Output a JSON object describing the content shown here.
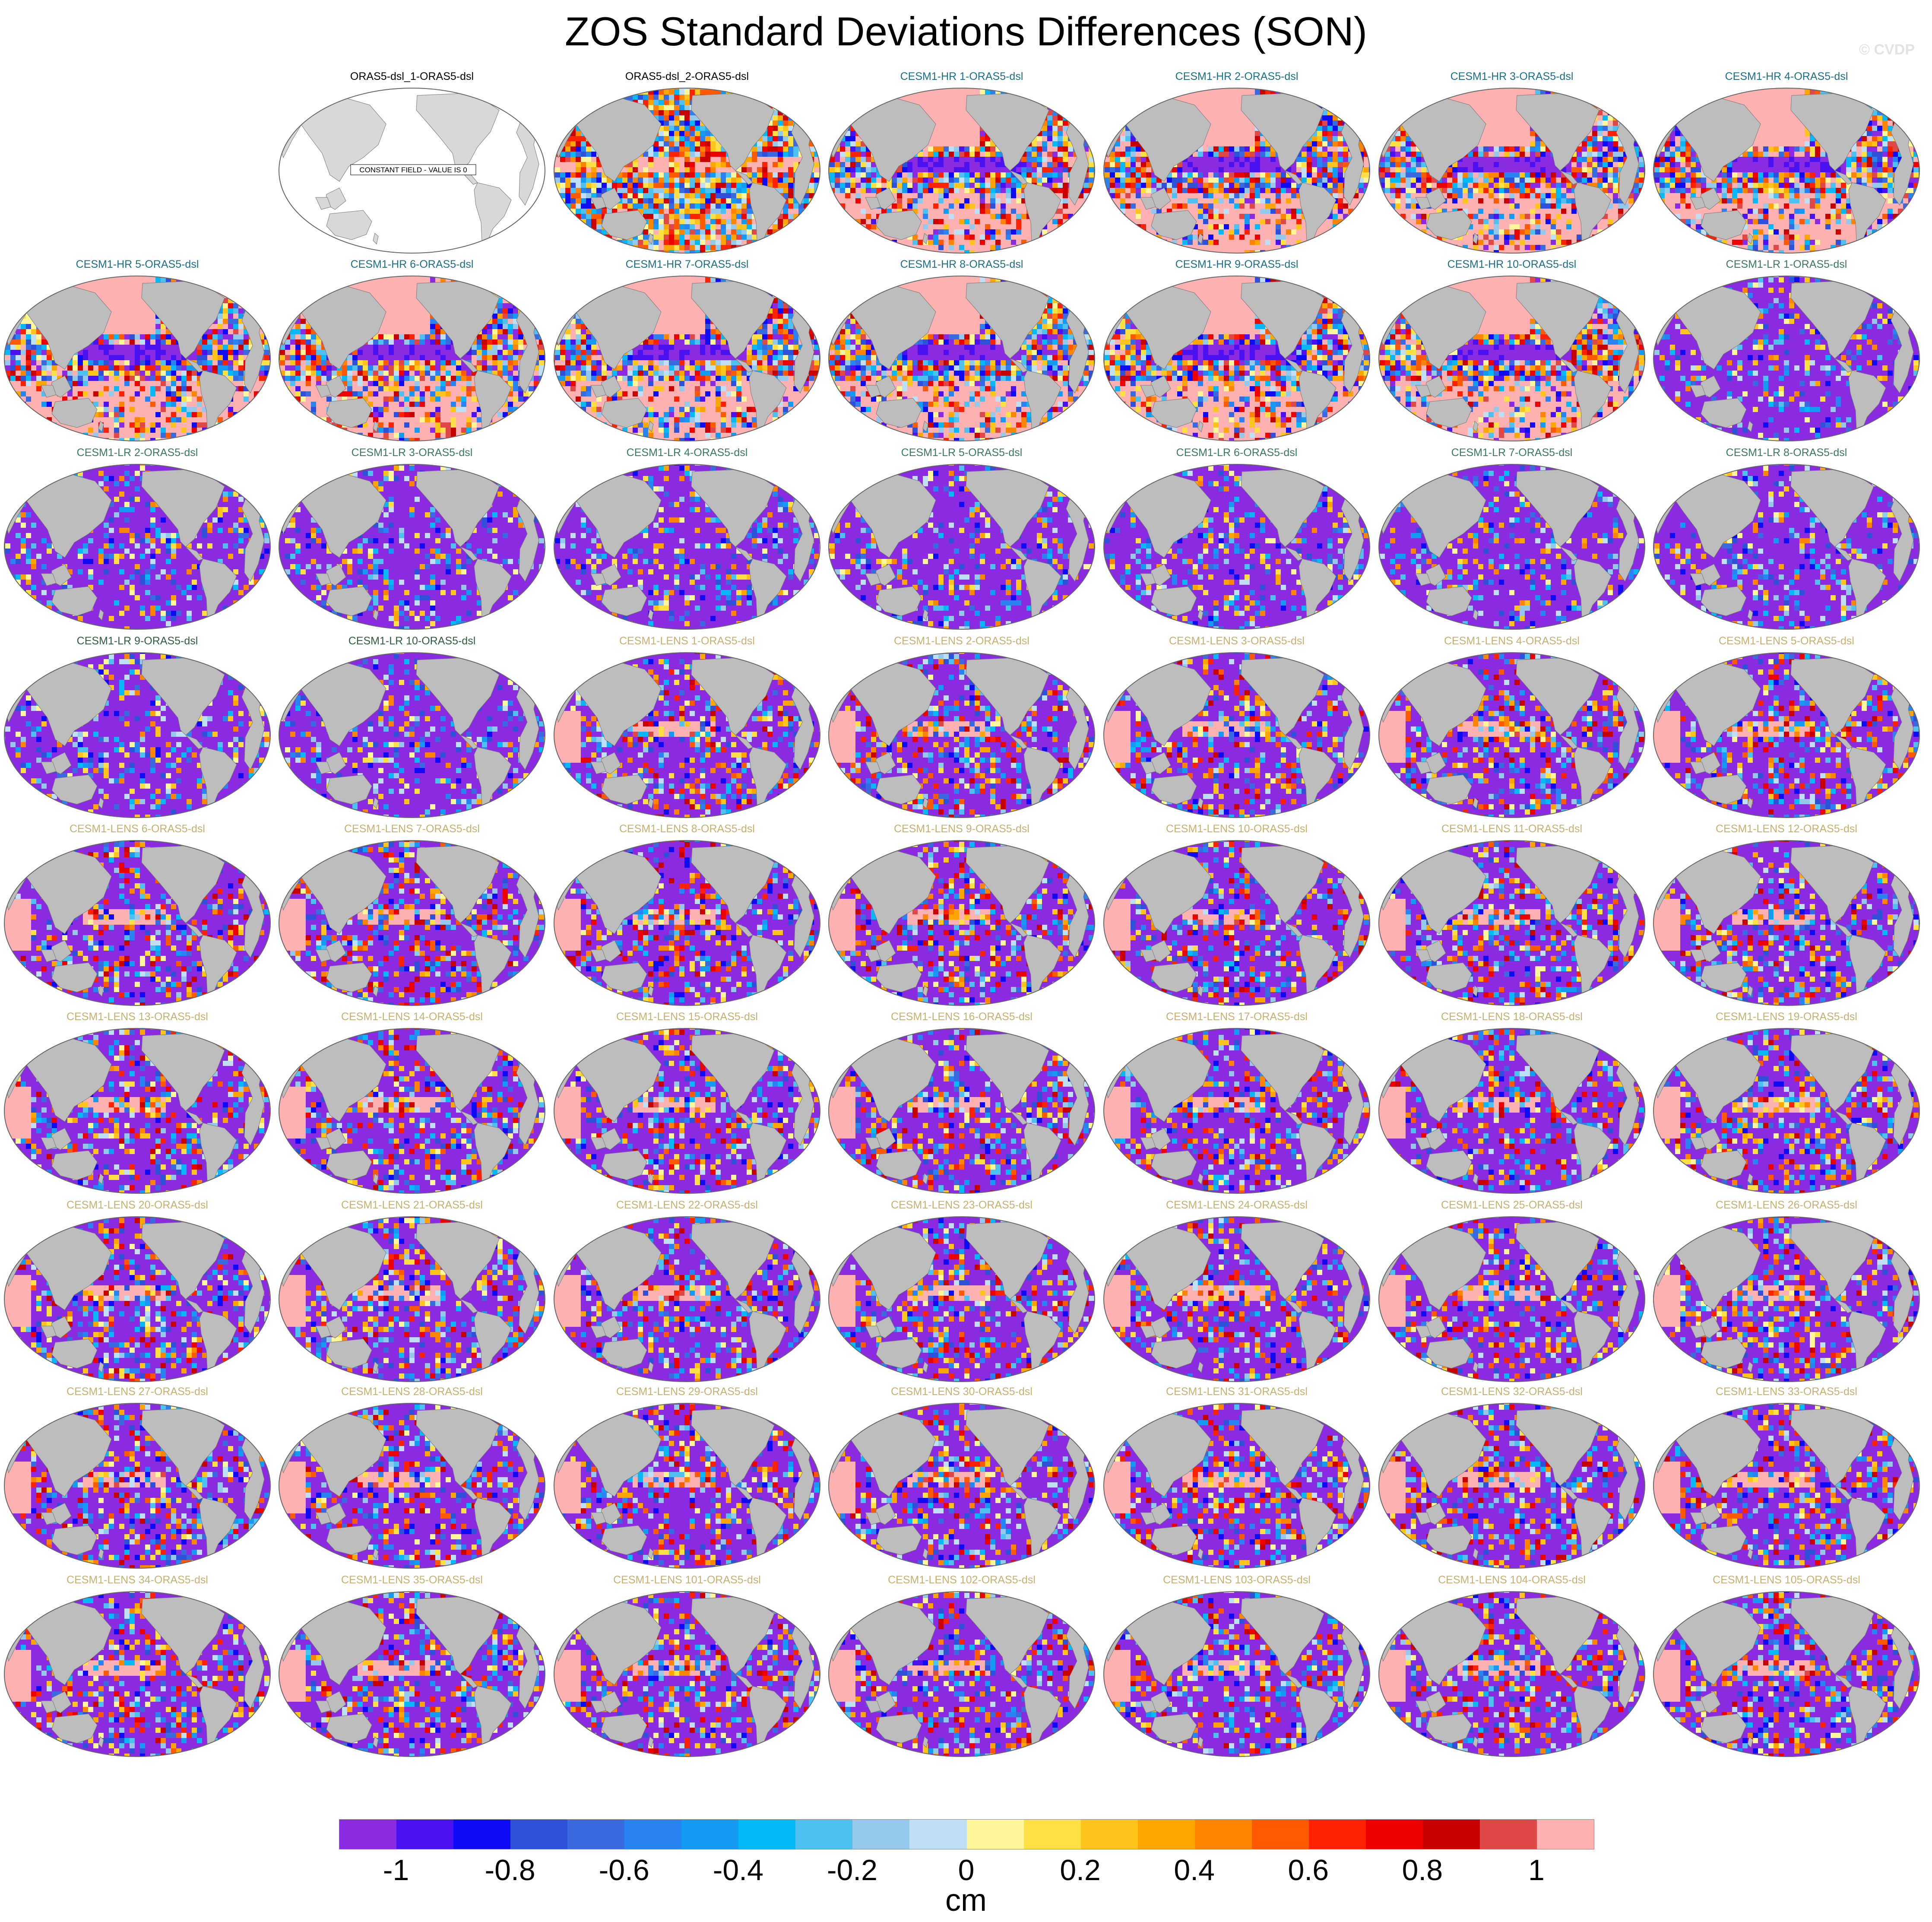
{
  "title": "ZOS Standard Deviations Differences (SON)",
  "watermark": "© CVDP",
  "panels": [
    {
      "title": "",
      "color": "#000000",
      "style": "empty"
    },
    {
      "title": "ORAS5-dsl_1-ORAS5-dsl",
      "color": "#000000",
      "style": "constant",
      "note": "CONSTANT FIELD - VALUE IS 0"
    },
    {
      "title": "ORAS5-dsl_2-ORAS5-dsl",
      "color": "#000000",
      "style": "oras"
    },
    {
      "title": "CESM1-HR 1-ORAS5-dsl",
      "color": "#1a6f8a",
      "style": "hr"
    },
    {
      "title": "CESM1-HR 2-ORAS5-dsl",
      "color": "#1a6f8a",
      "style": "hr"
    },
    {
      "title": "CESM1-HR 3-ORAS5-dsl",
      "color": "#1a6f8a",
      "style": "hr"
    },
    {
      "title": "CESM1-HR 4-ORAS5-dsl",
      "color": "#1a6f8a",
      "style": "hr"
    },
    {
      "title": "CESM1-HR 5-ORAS5-dsl",
      "color": "#1a6f8a",
      "style": "hr"
    },
    {
      "title": "CESM1-HR 6-ORAS5-dsl",
      "color": "#1a6f8a",
      "style": "hr"
    },
    {
      "title": "CESM1-HR 7-ORAS5-dsl",
      "color": "#1a6f8a",
      "style": "hr"
    },
    {
      "title": "CESM1-HR 8-ORAS5-dsl",
      "color": "#1a6f8a",
      "style": "hr"
    },
    {
      "title": "CESM1-HR 9-ORAS5-dsl",
      "color": "#1a6f8a",
      "style": "hr"
    },
    {
      "title": "CESM1-HR 10-ORAS5-dsl",
      "color": "#1a6f8a",
      "style": "hr"
    },
    {
      "title": "CESM1-LR 1-ORAS5-dsl",
      "color": "#3a7a5e",
      "style": "lr"
    },
    {
      "title": "CESM1-LR 2-ORAS5-dsl",
      "color": "#3a7a5e",
      "style": "lr"
    },
    {
      "title": "CESM1-LR 3-ORAS5-dsl",
      "color": "#3a7a5e",
      "style": "lr"
    },
    {
      "title": "CESM1-LR 4-ORAS5-dsl",
      "color": "#3a7a5e",
      "style": "lr"
    },
    {
      "title": "CESM1-LR 5-ORAS5-dsl",
      "color": "#3a7a5e",
      "style": "lr"
    },
    {
      "title": "CESM1-LR 6-ORAS5-dsl",
      "color": "#3a7a5e",
      "style": "lr"
    },
    {
      "title": "CESM1-LR 7-ORAS5-dsl",
      "color": "#3a7a5e",
      "style": "lr"
    },
    {
      "title": "CESM1-LR 8-ORAS5-dsl",
      "color": "#3a7a5e",
      "style": "lr"
    },
    {
      "title": "CESM1-LR 9-ORAS5-dsl",
      "color": "#2f5e3e",
      "style": "lr"
    },
    {
      "title": "CESM1-LR 10-ORAS5-dsl",
      "color": "#2f5e3e",
      "style": "lr"
    },
    {
      "title": "CESM1-LENS 1-ORAS5-dsl",
      "color": "#c8b070",
      "style": "lens"
    },
    {
      "title": "CESM1-LENS 2-ORAS5-dsl",
      "color": "#c8b070",
      "style": "lens"
    },
    {
      "title": "CESM1-LENS 3-ORAS5-dsl",
      "color": "#c8b070",
      "style": "lens"
    },
    {
      "title": "CESM1-LENS 4-ORAS5-dsl",
      "color": "#c8b070",
      "style": "lens"
    },
    {
      "title": "CESM1-LENS 5-ORAS5-dsl",
      "color": "#c8b070",
      "style": "lens"
    },
    {
      "title": "CESM1-LENS 6-ORAS5-dsl",
      "color": "#c8b070",
      "style": "lens"
    },
    {
      "title": "CESM1-LENS 7-ORAS5-dsl",
      "color": "#c8b070",
      "style": "lens"
    },
    {
      "title": "CESM1-LENS 8-ORAS5-dsl",
      "color": "#c8b070",
      "style": "lens"
    },
    {
      "title": "CESM1-LENS 9-ORAS5-dsl",
      "color": "#c8b070",
      "style": "lens"
    },
    {
      "title": "CESM1-LENS 10-ORAS5-dsl",
      "color": "#c8b070",
      "style": "lens"
    },
    {
      "title": "CESM1-LENS 11-ORAS5-dsl",
      "color": "#c8b070",
      "style": "lens"
    },
    {
      "title": "CESM1-LENS 12-ORAS5-dsl",
      "color": "#c8b070",
      "style": "lens"
    },
    {
      "title": "CESM1-LENS 13-ORAS5-dsl",
      "color": "#c8b070",
      "style": "lens"
    },
    {
      "title": "CESM1-LENS 14-ORAS5-dsl",
      "color": "#c8b070",
      "style": "lens"
    },
    {
      "title": "CESM1-LENS 15-ORAS5-dsl",
      "color": "#c8b070",
      "style": "lens"
    },
    {
      "title": "CESM1-LENS 16-ORAS5-dsl",
      "color": "#c8b070",
      "style": "lens"
    },
    {
      "title": "CESM1-LENS 17-ORAS5-dsl",
      "color": "#c8b070",
      "style": "lens"
    },
    {
      "title": "CESM1-LENS 18-ORAS5-dsl",
      "color": "#c8b070",
      "style": "lens"
    },
    {
      "title": "CESM1-LENS 19-ORAS5-dsl",
      "color": "#c8b070",
      "style": "lens"
    },
    {
      "title": "CESM1-LENS 20-ORAS5-dsl",
      "color": "#c8b070",
      "style": "lens"
    },
    {
      "title": "CESM1-LENS 21-ORAS5-dsl",
      "color": "#c8b070",
      "style": "lens"
    },
    {
      "title": "CESM1-LENS 22-ORAS5-dsl",
      "color": "#c8b070",
      "style": "lens"
    },
    {
      "title": "CESM1-LENS 23-ORAS5-dsl",
      "color": "#c8b070",
      "style": "lens"
    },
    {
      "title": "CESM1-LENS 24-ORAS5-dsl",
      "color": "#c8b070",
      "style": "lens"
    },
    {
      "title": "CESM1-LENS 25-ORAS5-dsl",
      "color": "#c8b070",
      "style": "lens"
    },
    {
      "title": "CESM1-LENS 26-ORAS5-dsl",
      "color": "#c8b070",
      "style": "lens"
    },
    {
      "title": "CESM1-LENS 27-ORAS5-dsl",
      "color": "#c8b070",
      "style": "lens"
    },
    {
      "title": "CESM1-LENS 28-ORAS5-dsl",
      "color": "#c8b070",
      "style": "lens"
    },
    {
      "title": "CESM1-LENS 29-ORAS5-dsl",
      "color": "#c8b070",
      "style": "lens"
    },
    {
      "title": "CESM1-LENS 30-ORAS5-dsl",
      "color": "#c8b070",
      "style": "lens"
    },
    {
      "title": "CESM1-LENS 31-ORAS5-dsl",
      "color": "#c8b070",
      "style": "lens"
    },
    {
      "title": "CESM1-LENS 32-ORAS5-dsl",
      "color": "#c8b070",
      "style": "lens"
    },
    {
      "title": "CESM1-LENS 33-ORAS5-dsl",
      "color": "#c8b070",
      "style": "lens"
    },
    {
      "title": "CESM1-LENS 34-ORAS5-dsl",
      "color": "#c8b070",
      "style": "lens"
    },
    {
      "title": "CESM1-LENS 35-ORAS5-dsl",
      "color": "#c8b070",
      "style": "lens"
    },
    {
      "title": "CESM1-LENS 101-ORAS5-dsl",
      "color": "#c8b070",
      "style": "lens"
    },
    {
      "title": "CESM1-LENS 102-ORAS5-dsl",
      "color": "#c8b070",
      "style": "lens"
    },
    {
      "title": "CESM1-LENS 103-ORAS5-dsl",
      "color": "#c8b070",
      "style": "lens"
    },
    {
      "title": "CESM1-LENS 104-ORAS5-dsl",
      "color": "#c8b070",
      "style": "lens"
    },
    {
      "title": "CESM1-LENS 105-ORAS5-dsl",
      "color": "#c8b070",
      "style": "lens"
    }
  ],
  "colorbar": {
    "colors": [
      "#8a2be2",
      "#4a12f0",
      "#0f0cf5",
      "#2f51d9",
      "#3a6ae0",
      "#2a83f2",
      "#149af3",
      "#05b8f8",
      "#4ec1f0",
      "#94c9ec",
      "#bedff5",
      "#fff59a",
      "#ffe044",
      "#ffc41c",
      "#ffa500",
      "#ff8400",
      "#ff5a00",
      "#ff2200",
      "#ef0000",
      "#c80000",
      "#e04848",
      "#ffb0b0"
    ],
    "ticks": [
      "-1",
      "-0.8",
      "-0.6",
      "-0.4",
      "-0.2",
      "0",
      "0.2",
      "0.4",
      "0.6",
      "0.8",
      "1"
    ],
    "tick_values": [
      -1,
      -0.8,
      -0.6,
      -0.4,
      -0.2,
      0,
      0.2,
      0.4,
      0.6,
      0.8,
      1
    ],
    "range": [
      -1.1,
      1.1
    ],
    "unit": "cm"
  },
  "map_colors": {
    "land": "#bdbdbd",
    "ocean_empty": "#ffffff",
    "outline": "#666666"
  }
}
